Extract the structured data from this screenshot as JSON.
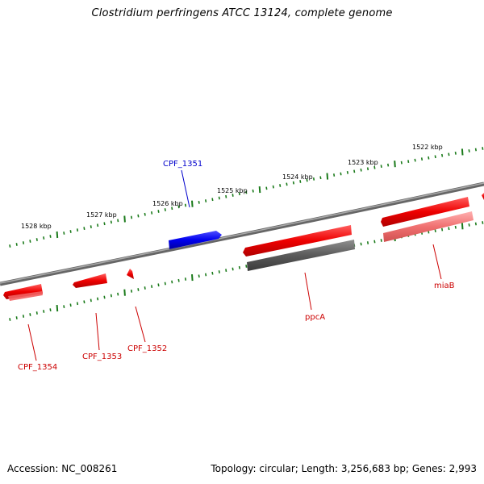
{
  "title": "Clostridium perfringens ATCC 13124, complete genome",
  "footer": {
    "accession": "Accession: NC_008261",
    "topology": "Topology: circular; Length: 3,256,683 bp; Genes: 2,993"
  },
  "scale_labels": [
    "1522 kbp",
    "1523 kbp",
    "1524 kbp",
    "1525 kbp",
    "1526 kbp",
    "1527 kbp",
    "1528 kbp"
  ],
  "genes": [
    {
      "name": "CPF_1351",
      "strand": "forward",
      "color": "#0000ff"
    },
    {
      "name": "CPF_1352",
      "strand": "reverse",
      "color": "#dd0000"
    },
    {
      "name": "CPF_1353",
      "strand": "reverse",
      "color": "#dd0000"
    },
    {
      "name": "CPF_1354",
      "strand": "reverse",
      "color": "#dd0000"
    },
    {
      "name": "ppcA",
      "strand": "reverse",
      "color": "#dd0000"
    },
    {
      "name": "miaB",
      "strand": "reverse",
      "color": "#dd0000"
    }
  ],
  "colors": {
    "backbone": "#808080",
    "tick": "#1a7a1a",
    "forward_gene": "#0000ff",
    "reverse_gene": "#ee1111",
    "reverse_gene_light": "#f08080",
    "feature_gray": "#606060"
  }
}
